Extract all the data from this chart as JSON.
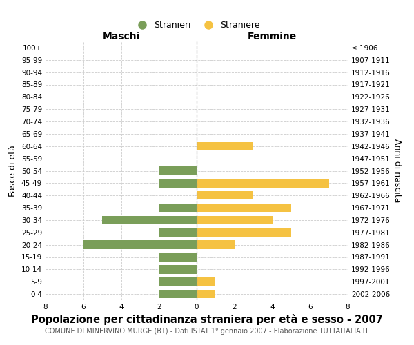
{
  "age_groups": [
    "100+",
    "95-99",
    "90-94",
    "85-89",
    "80-84",
    "75-79",
    "70-74",
    "65-69",
    "60-64",
    "55-59",
    "50-54",
    "45-49",
    "40-44",
    "35-39",
    "30-34",
    "25-29",
    "20-24",
    "15-19",
    "10-14",
    "5-9",
    "0-4"
  ],
  "birth_years": [
    "≤ 1906",
    "1907-1911",
    "1912-1916",
    "1917-1921",
    "1922-1926",
    "1927-1931",
    "1932-1936",
    "1937-1941",
    "1942-1946",
    "1947-1951",
    "1952-1956",
    "1957-1961",
    "1962-1966",
    "1967-1971",
    "1972-1976",
    "1977-1981",
    "1982-1986",
    "1987-1991",
    "1992-1996",
    "1997-2001",
    "2002-2006"
  ],
  "males": [
    0,
    0,
    0,
    0,
    0,
    0,
    0,
    0,
    0,
    0,
    2,
    2,
    0,
    2,
    5,
    2,
    6,
    2,
    2,
    2,
    2
  ],
  "females": [
    0,
    0,
    0,
    0,
    0,
    0,
    0,
    0,
    3,
    0,
    0,
    7,
    3,
    5,
    4,
    5,
    2,
    0,
    0,
    1,
    1
  ],
  "male_color": "#7a9e59",
  "female_color": "#f5c242",
  "background_color": "#ffffff",
  "grid_color": "#cccccc",
  "title": "Popolazione per cittadinanza straniera per età e sesso - 2007",
  "subtitle": "COMUNE DI MINERVINO MURGE (BT) - Dati ISTAT 1° gennaio 2007 - Elaborazione TUTTAITALIA.IT",
  "xlabel_left": "Maschi",
  "xlabel_right": "Femmine",
  "ylabel_left": "Fasce di età",
  "ylabel_right": "Anni di nascita",
  "legend_male": "Stranieri",
  "legend_female": "Straniere",
  "xlim": 8,
  "tick_fontsize": 7.5,
  "label_fontsize": 9,
  "title_fontsize": 10.5,
  "subtitle_fontsize": 7
}
